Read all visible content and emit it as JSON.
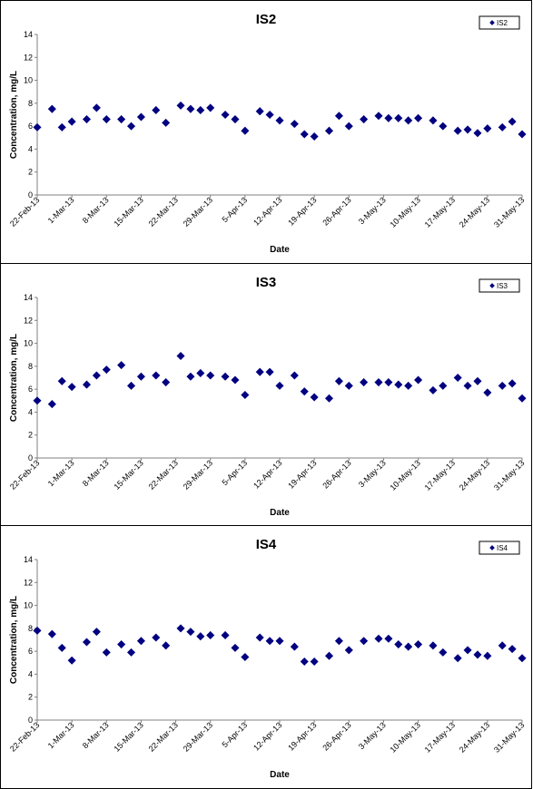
{
  "chart_data": [
    {
      "type": "scatter",
      "title": "IS2",
      "xlabel": "Date",
      "ylabel": "Concentration, mg/L",
      "ylim": [
        0,
        14
      ],
      "yticks": [
        "0",
        "2",
        "4",
        "6",
        "8",
        "10",
        "12",
        "14"
      ],
      "x_tick_labels": [
        "22-Feb-13",
        "1-Mar-13",
        "8-Mar-13",
        "15-Mar-13",
        "22-Mar-13",
        "29-Mar-13",
        "5-Apr-13",
        "12-Apr-13",
        "19-Apr-13",
        "26-Apr-13",
        "3-May-13",
        "10-May-13",
        "17-May-13",
        "24-May-13",
        "31-May-13"
      ],
      "xlim": [
        "2013-02-22",
        "2013-05-31"
      ],
      "legend_position": "top-right",
      "marker_color": "#000080",
      "series": [
        {
          "name": "IS2",
          "points": [
            [
              "2013-02-22",
              5.9
            ],
            [
              "2013-02-25",
              7.5
            ],
            [
              "2013-02-27",
              5.9
            ],
            [
              "2013-03-01",
              6.4
            ],
            [
              "2013-03-04",
              6.6
            ],
            [
              "2013-03-06",
              7.6
            ],
            [
              "2013-03-08",
              6.6
            ],
            [
              "2013-03-11",
              6.6
            ],
            [
              "2013-03-13",
              6.0
            ],
            [
              "2013-03-15",
              6.8
            ],
            [
              "2013-03-18",
              7.4
            ],
            [
              "2013-03-20",
              6.3
            ],
            [
              "2013-03-23",
              7.8
            ],
            [
              "2013-03-25",
              7.5
            ],
            [
              "2013-03-27",
              7.4
            ],
            [
              "2013-03-29",
              7.6
            ],
            [
              "2013-04-01",
              7.0
            ],
            [
              "2013-04-03",
              6.6
            ],
            [
              "2013-04-05",
              5.6
            ],
            [
              "2013-04-08",
              7.3
            ],
            [
              "2013-04-10",
              7.0
            ],
            [
              "2013-04-12",
              6.5
            ],
            [
              "2013-04-15",
              6.2
            ],
            [
              "2013-04-17",
              5.3
            ],
            [
              "2013-04-19",
              5.1
            ],
            [
              "2013-04-22",
              5.6
            ],
            [
              "2013-04-24",
              6.9
            ],
            [
              "2013-04-26",
              6.0
            ],
            [
              "2013-04-29",
              6.6
            ],
            [
              "2013-05-02",
              6.9
            ],
            [
              "2013-05-04",
              6.7
            ],
            [
              "2013-05-06",
              6.7
            ],
            [
              "2013-05-08",
              6.5
            ],
            [
              "2013-05-10",
              6.7
            ],
            [
              "2013-05-13",
              6.5
            ],
            [
              "2013-05-15",
              6.0
            ],
            [
              "2013-05-18",
              5.6
            ],
            [
              "2013-05-20",
              5.7
            ],
            [
              "2013-05-22",
              5.4
            ],
            [
              "2013-05-24",
              5.8
            ],
            [
              "2013-05-27",
              5.9
            ],
            [
              "2013-05-29",
              6.4
            ],
            [
              "2013-05-31",
              5.3
            ]
          ]
        }
      ]
    },
    {
      "type": "scatter",
      "title": "IS3",
      "xlabel": "Date",
      "ylabel": "Concentration, mg/L",
      "ylim": [
        0,
        14
      ],
      "yticks": [
        "0",
        "2",
        "4",
        "6",
        "8",
        "10",
        "12",
        "14"
      ],
      "x_tick_labels": [
        "22-Feb-13",
        "1-Mar-13",
        "8-Mar-13",
        "15-Mar-13",
        "22-Mar-13",
        "29-Mar-13",
        "5-Apr-13",
        "12-Apr-13",
        "19-Apr-13",
        "26-Apr-13",
        "3-May-13",
        "10-May-13",
        "17-May-13",
        "24-May-13",
        "31-May-13"
      ],
      "xlim": [
        "2013-02-22",
        "2013-05-31"
      ],
      "legend_position": "top-right",
      "marker_color": "#000080",
      "series": [
        {
          "name": "IS3",
          "points": [
            [
              "2013-02-22",
              5.0
            ],
            [
              "2013-02-25",
              4.7
            ],
            [
              "2013-02-27",
              6.7
            ],
            [
              "2013-03-01",
              6.2
            ],
            [
              "2013-03-04",
              6.4
            ],
            [
              "2013-03-06",
              7.2
            ],
            [
              "2013-03-08",
              7.7
            ],
            [
              "2013-03-11",
              8.1
            ],
            [
              "2013-03-13",
              6.3
            ],
            [
              "2013-03-15",
              7.1
            ],
            [
              "2013-03-18",
              7.2
            ],
            [
              "2013-03-20",
              6.6
            ],
            [
              "2013-03-23",
              8.9
            ],
            [
              "2013-03-25",
              7.1
            ],
            [
              "2013-03-27",
              7.4
            ],
            [
              "2013-03-29",
              7.2
            ],
            [
              "2013-04-01",
              7.1
            ],
            [
              "2013-04-03",
              6.8
            ],
            [
              "2013-04-05",
              5.5
            ],
            [
              "2013-04-08",
              7.5
            ],
            [
              "2013-04-10",
              7.5
            ],
            [
              "2013-04-12",
              6.3
            ],
            [
              "2013-04-15",
              7.2
            ],
            [
              "2013-04-17",
              5.8
            ],
            [
              "2013-04-19",
              5.3
            ],
            [
              "2013-04-22",
              5.2
            ],
            [
              "2013-04-24",
              6.7
            ],
            [
              "2013-04-26",
              6.3
            ],
            [
              "2013-04-29",
              6.6
            ],
            [
              "2013-05-02",
              6.6
            ],
            [
              "2013-05-04",
              6.6
            ],
            [
              "2013-05-06",
              6.4
            ],
            [
              "2013-05-08",
              6.3
            ],
            [
              "2013-05-10",
              6.8
            ],
            [
              "2013-05-13",
              5.9
            ],
            [
              "2013-05-15",
              6.3
            ],
            [
              "2013-05-18",
              7.0
            ],
            [
              "2013-05-20",
              6.3
            ],
            [
              "2013-05-22",
              6.7
            ],
            [
              "2013-05-24",
              5.7
            ],
            [
              "2013-05-27",
              6.3
            ],
            [
              "2013-05-29",
              6.5
            ],
            [
              "2013-05-31",
              5.2
            ]
          ]
        }
      ]
    },
    {
      "type": "scatter",
      "title": "IS4",
      "xlabel": "Date",
      "ylabel": "Concentration, mg/L",
      "ylim": [
        0,
        14
      ],
      "yticks": [
        "0",
        "2",
        "4",
        "6",
        "8",
        "10",
        "12",
        "14"
      ],
      "x_tick_labels": [
        "22-Feb-13",
        "1-Mar-13",
        "8-Mar-13",
        "15-Mar-13",
        "22-Mar-13",
        "29-Mar-13",
        "5-Apr-13",
        "12-Apr-13",
        "19-Apr-13",
        "26-Apr-13",
        "3-May-13",
        "10-May-13",
        "17-May-13",
        "24-May-13",
        "31-May-13"
      ],
      "xlim": [
        "2013-02-22",
        "2013-05-31"
      ],
      "legend_position": "top-right",
      "marker_color": "#000080",
      "series": [
        {
          "name": "IS4",
          "points": [
            [
              "2013-02-22",
              7.8
            ],
            [
              "2013-02-25",
              7.5
            ],
            [
              "2013-02-27",
              6.3
            ],
            [
              "2013-03-01",
              5.2
            ],
            [
              "2013-03-04",
              6.8
            ],
            [
              "2013-03-06",
              7.7
            ],
            [
              "2013-03-08",
              5.9
            ],
            [
              "2013-03-11",
              6.6
            ],
            [
              "2013-03-13",
              5.9
            ],
            [
              "2013-03-15",
              6.9
            ],
            [
              "2013-03-18",
              7.2
            ],
            [
              "2013-03-20",
              6.5
            ],
            [
              "2013-03-23",
              8.0
            ],
            [
              "2013-03-25",
              7.7
            ],
            [
              "2013-03-27",
              7.3
            ],
            [
              "2013-03-29",
              7.4
            ],
            [
              "2013-04-01",
              7.4
            ],
            [
              "2013-04-03",
              6.3
            ],
            [
              "2013-04-05",
              5.5
            ],
            [
              "2013-04-08",
              7.2
            ],
            [
              "2013-04-10",
              6.9
            ],
            [
              "2013-04-12",
              6.9
            ],
            [
              "2013-04-15",
              6.4
            ],
            [
              "2013-04-17",
              5.1
            ],
            [
              "2013-04-19",
              5.1
            ],
            [
              "2013-04-22",
              5.6
            ],
            [
              "2013-04-24",
              6.9
            ],
            [
              "2013-04-26",
              6.1
            ],
            [
              "2013-04-29",
              6.9
            ],
            [
              "2013-05-02",
              7.1
            ],
            [
              "2013-05-04",
              7.1
            ],
            [
              "2013-05-06",
              6.6
            ],
            [
              "2013-05-08",
              6.4
            ],
            [
              "2013-05-10",
              6.6
            ],
            [
              "2013-05-13",
              6.5
            ],
            [
              "2013-05-15",
              5.9
            ],
            [
              "2013-05-18",
              5.4
            ],
            [
              "2013-05-20",
              6.1
            ],
            [
              "2013-05-22",
              5.7
            ],
            [
              "2013-05-24",
              5.6
            ],
            [
              "2013-05-27",
              6.5
            ],
            [
              "2013-05-29",
              6.2
            ],
            [
              "2013-05-31",
              5.4
            ]
          ]
        }
      ]
    }
  ]
}
